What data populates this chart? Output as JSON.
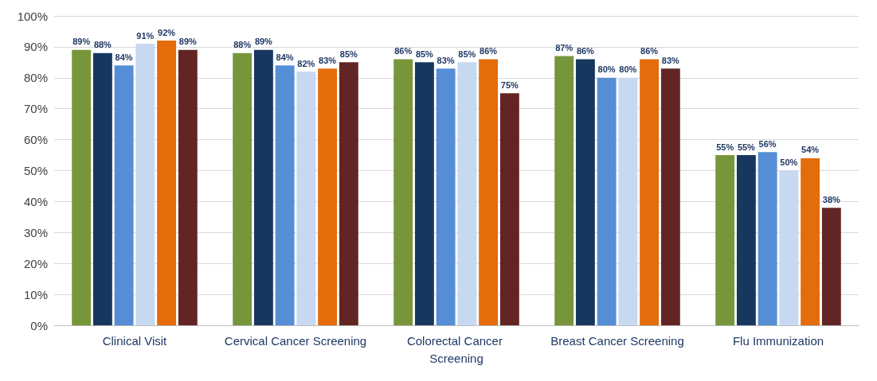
{
  "chart_data": {
    "type": "bar",
    "categories": [
      "Clinical Visit",
      "Cervical Cancer Screening",
      "Colorectal Cancer Screening",
      "Breast Cancer Screening",
      "Flu Immunization"
    ],
    "series": [
      {
        "color": "#77963c",
        "values": [
          89,
          88,
          86,
          87,
          55
        ],
        "value_labels": [
          "89%",
          "88%",
          "86%",
          "87%",
          "55%"
        ]
      },
      {
        "color": "#17375e",
        "values": [
          88,
          89,
          85,
          86,
          55
        ],
        "value_labels": [
          "88%",
          "89%",
          "85%",
          "86%",
          "55%"
        ]
      },
      {
        "color": "#558ed5",
        "values": [
          84,
          84,
          83,
          80,
          56
        ],
        "value_labels": [
          "84%",
          "84%",
          "83%",
          "80%",
          "56%"
        ]
      },
      {
        "color": "#c6d9f1",
        "values": [
          91,
          82,
          85,
          80,
          50
        ],
        "value_labels": [
          "91%",
          "82%",
          "85%",
          "80%",
          "50%"
        ]
      },
      {
        "color": "#e46c0a",
        "values": [
          92,
          83,
          86,
          86,
          54
        ],
        "value_labels": [
          "92%",
          "83%",
          "86%",
          "86%",
          "54%"
        ]
      },
      {
        "color": "#632523",
        "values": [
          89,
          85,
          75,
          83,
          38
        ],
        "value_labels": [
          "89%",
          "85%",
          "75%",
          "83%",
          "38%"
        ]
      }
    ],
    "ylim": [
      0,
      100
    ],
    "yticks": [
      {
        "value": 0,
        "label": "0%"
      },
      {
        "value": 10,
        "label": "10%"
      },
      {
        "value": 20,
        "label": "20%"
      },
      {
        "value": 30,
        "label": "30%"
      },
      {
        "value": 40,
        "label": "40%"
      },
      {
        "value": 50,
        "label": "50%"
      },
      {
        "value": 60,
        "label": "60%"
      },
      {
        "value": 70,
        "label": "70%"
      },
      {
        "value": 80,
        "label": "80%"
      },
      {
        "value": 90,
        "label": "90%"
      },
      {
        "value": 100,
        "label": "100%"
      }
    ],
    "grid": "y"
  }
}
